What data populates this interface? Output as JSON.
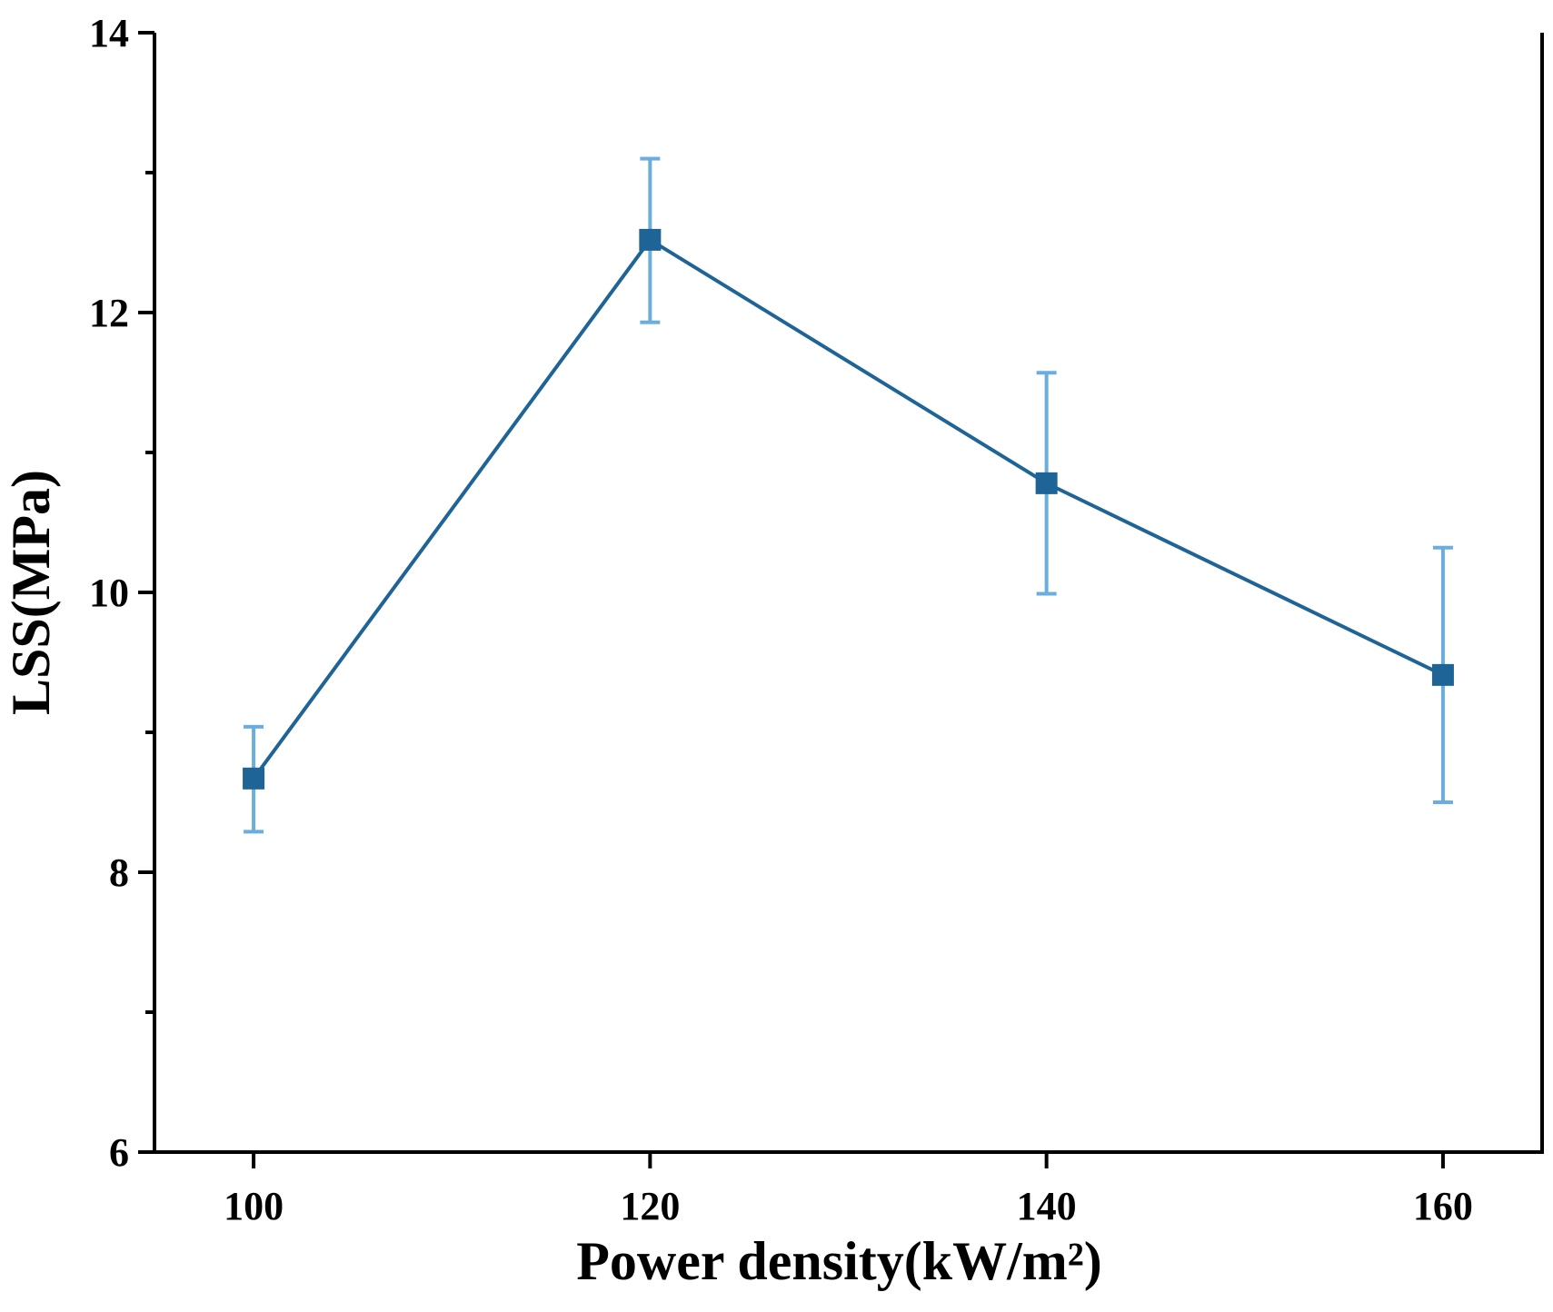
{
  "chart_data": {
    "type": "line",
    "title": "",
    "xlabel": "Power density(kW/m²)",
    "ylabel": "LSS(MPa)",
    "xlim": [
      95,
      165
    ],
    "ylim": [
      6,
      14
    ],
    "xticks": [
      100,
      120,
      140,
      160
    ],
    "yticks": [
      6,
      8,
      10,
      12,
      14
    ],
    "yminor_ticks": [
      7,
      9,
      11,
      13
    ],
    "grid": false,
    "legend": "none",
    "series": [
      {
        "name": "LSS",
        "x": [
          100,
          120,
          140,
          160
        ],
        "values": [
          8.67,
          12.52,
          10.78,
          9.41
        ],
        "error_low": [
          8.29,
          11.93,
          9.99,
          8.5
        ],
        "error_high": [
          9.04,
          13.1,
          11.57,
          10.32
        ],
        "line_color": "#1F6496",
        "marker_color": "#1F6496",
        "error_color": "#6AAEDF",
        "marker": "square"
      }
    ]
  }
}
